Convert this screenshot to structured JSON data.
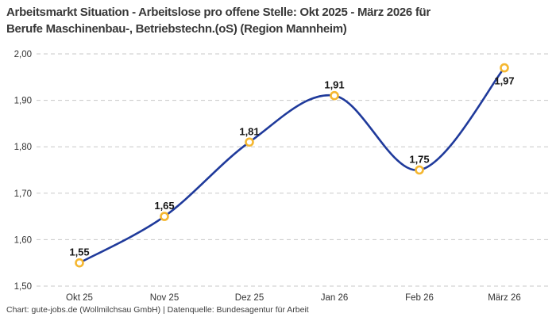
{
  "header": {
    "title_line1": "Arbeitsmarkt Situation - Arbeitslose pro offene Stelle: Okt 2025 - März 2026 für",
    "title_line2": "Berufe Maschinenbau-, Betriebstechn.(oS) (Region Mannheim)"
  },
  "footer": {
    "credit": "Chart: gute-jobs.de (Wollmilchsau GmbH) | Datenquelle: Bundesagentur für Arbeit"
  },
  "chart_data": {
    "type": "line",
    "title": "Arbeitsmarkt Situation - Arbeitslose pro offene Stelle: Okt 2025 - März 2026 für Berufe Maschinenbau-, Betriebstechn.(oS) (Region Mannheim)",
    "categories": [
      "Okt 25",
      "Nov 25",
      "Dez 25",
      "Jan 26",
      "Feb 26",
      "März 26"
    ],
    "values": [
      1.55,
      1.65,
      1.81,
      1.91,
      1.75,
      1.97
    ],
    "point_labels": [
      "1,55",
      "1,65",
      "1,81",
      "1,91",
      "1,75",
      "1,97"
    ],
    "ylim": [
      1.5,
      2.0
    ],
    "yticks": [
      1.5,
      1.6,
      1.7,
      1.8,
      1.9,
      2.0
    ],
    "ytick_labels": [
      "1,50",
      "1,60",
      "1,70",
      "1,80",
      "1,90",
      "2,00"
    ],
    "xlabel": "",
    "ylabel": "",
    "grid": "horizontal-dashed",
    "legend": "none",
    "smooth": true,
    "colors": {
      "line": "#1f3a9b",
      "marker_ring": "#f5b730",
      "marker_fill": "#ffffff",
      "gridline": "#c8c8c8",
      "axis_text": "#333333",
      "point_label": "#151515"
    }
  }
}
